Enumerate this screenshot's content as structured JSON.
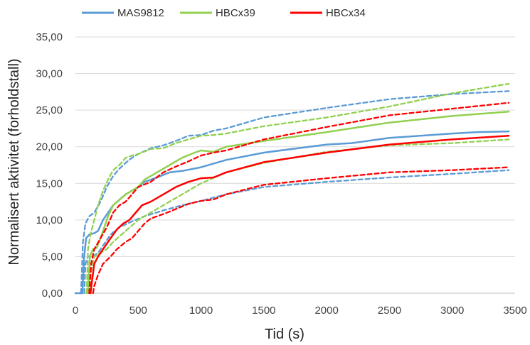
{
  "chart_data": {
    "type": "line",
    "title": "",
    "xlabel": "Tid (s)",
    "ylabel": "Normalisert aktivitet (forholdstall)",
    "xlim": [
      0,
      3500
    ],
    "ylim": [
      0,
      35
    ],
    "x_ticks": [
      0,
      500,
      1000,
      1500,
      2000,
      2500,
      3000,
      3500
    ],
    "y_ticks": [
      "0,00",
      "5,00",
      "10,00",
      "15,00",
      "20,00",
      "25,00",
      "30,00",
      "35,00"
    ],
    "grid": "horizontal",
    "legend_position": "top",
    "legend": [
      {
        "name": "MAS9812",
        "color": "#5B9BD5"
      },
      {
        "name": "HBCx39",
        "color": "#92D050"
      },
      {
        "name": "HBCx34",
        "color": "#FF0000"
      }
    ],
    "series": [
      {
        "name": "MAS9812",
        "color": "#5B9BD5",
        "style": "solid",
        "points": [
          [
            0,
            0
          ],
          [
            55,
            0
          ],
          [
            70,
            5
          ],
          [
            85,
            7.5
          ],
          [
            110,
            8
          ],
          [
            150,
            8.2
          ],
          [
            180,
            8.5
          ],
          [
            220,
            10
          ],
          [
            300,
            12
          ],
          [
            400,
            13.5
          ],
          [
            450,
            14
          ],
          [
            500,
            14.5
          ],
          [
            550,
            15.2
          ],
          [
            650,
            15.8
          ],
          [
            750,
            16.5
          ],
          [
            850,
            16.7
          ],
          [
            1000,
            17.2
          ],
          [
            1200,
            18.2
          ],
          [
            1500,
            19.2
          ],
          [
            2000,
            20.3
          ],
          [
            2200,
            20.5
          ],
          [
            2500,
            21.2
          ],
          [
            3000,
            21.8
          ],
          [
            3200,
            22
          ],
          [
            3450,
            22.1
          ]
        ]
      },
      {
        "name": "MAS9812 upper",
        "color": "#5B9BD5",
        "style": "dashed",
        "points": [
          [
            45,
            0
          ],
          [
            60,
            7
          ],
          [
            80,
            9.5
          ],
          [
            110,
            10.5
          ],
          [
            150,
            11
          ],
          [
            200,
            12.5
          ],
          [
            250,
            14.5
          ],
          [
            300,
            16
          ],
          [
            350,
            17
          ],
          [
            400,
            17.8
          ],
          [
            450,
            18.5
          ],
          [
            500,
            19
          ],
          [
            600,
            19.8
          ],
          [
            700,
            20.2
          ],
          [
            800,
            20.8
          ],
          [
            900,
            21.5
          ],
          [
            1000,
            21.6
          ],
          [
            1100,
            22.2
          ],
          [
            1200,
            22.5
          ],
          [
            1500,
            24
          ],
          [
            2000,
            25.3
          ],
          [
            2500,
            26.5
          ],
          [
            3000,
            27.2
          ],
          [
            3450,
            27.6
          ]
        ]
      },
      {
        "name": "MAS9812 lower",
        "color": "#5B9BD5",
        "style": "dashed",
        "points": [
          [
            70,
            0
          ],
          [
            80,
            4
          ],
          [
            100,
            5
          ],
          [
            140,
            5
          ],
          [
            180,
            5.5
          ],
          [
            220,
            6.5
          ],
          [
            280,
            8
          ],
          [
            350,
            9
          ],
          [
            450,
            9.8
          ],
          [
            550,
            10.5
          ],
          [
            700,
            11.3
          ],
          [
            850,
            12
          ],
          [
            1000,
            12.6
          ],
          [
            1200,
            13.5
          ],
          [
            1500,
            14.5
          ],
          [
            2000,
            15.2
          ],
          [
            2500,
            15.8
          ],
          [
            3000,
            16.3
          ],
          [
            3450,
            16.8
          ]
        ]
      },
      {
        "name": "HBCx39",
        "color": "#92D050",
        "style": "solid",
        "points": [
          [
            100,
            0
          ],
          [
            115,
            5
          ],
          [
            140,
            6
          ],
          [
            170,
            6.2
          ],
          [
            200,
            7.5
          ],
          [
            230,
            9
          ],
          [
            260,
            10.5
          ],
          [
            300,
            12
          ],
          [
            400,
            13.5
          ],
          [
            450,
            14
          ],
          [
            500,
            14.5
          ],
          [
            550,
            15.5
          ],
          [
            650,
            16.5
          ],
          [
            750,
            17.5
          ],
          [
            850,
            18.5
          ],
          [
            950,
            19.2
          ],
          [
            1000,
            19.5
          ],
          [
            1100,
            19.3
          ],
          [
            1200,
            20
          ],
          [
            1500,
            20.8
          ],
          [
            2000,
            22
          ],
          [
            2500,
            23.3
          ],
          [
            3000,
            24.2
          ],
          [
            3450,
            24.8
          ]
        ]
      },
      {
        "name": "HBCx39 upper",
        "color": "#92D050",
        "style": "dashed",
        "points": [
          [
            90,
            0
          ],
          [
            100,
            6
          ],
          [
            120,
            8
          ],
          [
            150,
            10
          ],
          [
            180,
            12
          ],
          [
            220,
            14
          ],
          [
            260,
            15.5
          ],
          [
            300,
            16.8
          ],
          [
            350,
            17.5
          ],
          [
            400,
            18.5
          ],
          [
            450,
            18.8
          ],
          [
            500,
            19
          ],
          [
            600,
            19.7
          ],
          [
            700,
            19.8
          ],
          [
            800,
            20.5
          ],
          [
            900,
            21
          ],
          [
            1000,
            21.5
          ],
          [
            1100,
            21.6
          ],
          [
            1200,
            21.8
          ],
          [
            1500,
            22.8
          ],
          [
            2000,
            24
          ],
          [
            2500,
            25.5
          ],
          [
            3000,
            27.3
          ],
          [
            3450,
            28.6
          ]
        ]
      },
      {
        "name": "HBCx39 lower",
        "color": "#92D050",
        "style": "dashed",
        "points": [
          [
            110,
            0
          ],
          [
            125,
            3
          ],
          [
            150,
            5
          ],
          [
            200,
            5.5
          ],
          [
            250,
            6
          ],
          [
            300,
            7
          ],
          [
            400,
            8.5
          ],
          [
            500,
            10
          ],
          [
            600,
            11
          ],
          [
            700,
            12
          ],
          [
            800,
            13
          ],
          [
            900,
            14
          ],
          [
            1000,
            15
          ],
          [
            1200,
            16.5
          ],
          [
            1500,
            17.8
          ],
          [
            2000,
            19.3
          ],
          [
            2500,
            20.2
          ],
          [
            3000,
            20.5
          ],
          [
            3450,
            21
          ]
        ]
      },
      {
        "name": "HBCx34",
        "color": "#FF0000",
        "style": "solid",
        "points": [
          [
            120,
            0
          ],
          [
            135,
            2
          ],
          [
            150,
            4
          ],
          [
            180,
            5
          ],
          [
            220,
            6
          ],
          [
            280,
            7.5
          ],
          [
            330,
            8.7
          ],
          [
            380,
            9.5
          ],
          [
            430,
            10
          ],
          [
            480,
            11
          ],
          [
            530,
            12
          ],
          [
            600,
            12.5
          ],
          [
            700,
            13.5
          ],
          [
            800,
            14.5
          ],
          [
            900,
            15.2
          ],
          [
            1000,
            15.7
          ],
          [
            1100,
            15.8
          ],
          [
            1200,
            16.5
          ],
          [
            1500,
            17.9
          ],
          [
            2000,
            19.2
          ],
          [
            2500,
            20.3
          ],
          [
            3000,
            21
          ],
          [
            3450,
            21.5
          ]
        ]
      },
      {
        "name": "HBCx34 upper",
        "color": "#FF0000",
        "style": "dashed",
        "points": [
          [
            110,
            0
          ],
          [
            125,
            4
          ],
          [
            150,
            6
          ],
          [
            200,
            7.5
          ],
          [
            250,
            9
          ],
          [
            300,
            11
          ],
          [
            350,
            12
          ],
          [
            400,
            12.5
          ],
          [
            450,
            13.5
          ],
          [
            500,
            14.5
          ],
          [
            600,
            15.2
          ],
          [
            700,
            16.5
          ],
          [
            800,
            17.3
          ],
          [
            900,
            18
          ],
          [
            1000,
            18.8
          ],
          [
            1100,
            19.2
          ],
          [
            1200,
            19.5
          ],
          [
            1500,
            21
          ],
          [
            2000,
            22.7
          ],
          [
            2500,
            24.3
          ],
          [
            3000,
            25.2
          ],
          [
            3450,
            26
          ]
        ]
      },
      {
        "name": "HBCx34 lower",
        "color": "#FF0000",
        "style": "dashed",
        "points": [
          [
            140,
            0
          ],
          [
            150,
            1
          ],
          [
            180,
            2.5
          ],
          [
            220,
            4
          ],
          [
            280,
            5
          ],
          [
            330,
            6
          ],
          [
            400,
            7
          ],
          [
            450,
            7.5
          ],
          [
            500,
            8.5
          ],
          [
            550,
            9.5
          ],
          [
            600,
            10.2
          ],
          [
            700,
            10.8
          ],
          [
            800,
            11.5
          ],
          [
            900,
            12.2
          ],
          [
            1000,
            12.6
          ],
          [
            1100,
            12.8
          ],
          [
            1200,
            13.5
          ],
          [
            1500,
            14.8
          ],
          [
            2000,
            15.7
          ],
          [
            2500,
            16.5
          ],
          [
            3000,
            16.8
          ],
          [
            3450,
            17.2
          ]
        ]
      }
    ]
  }
}
